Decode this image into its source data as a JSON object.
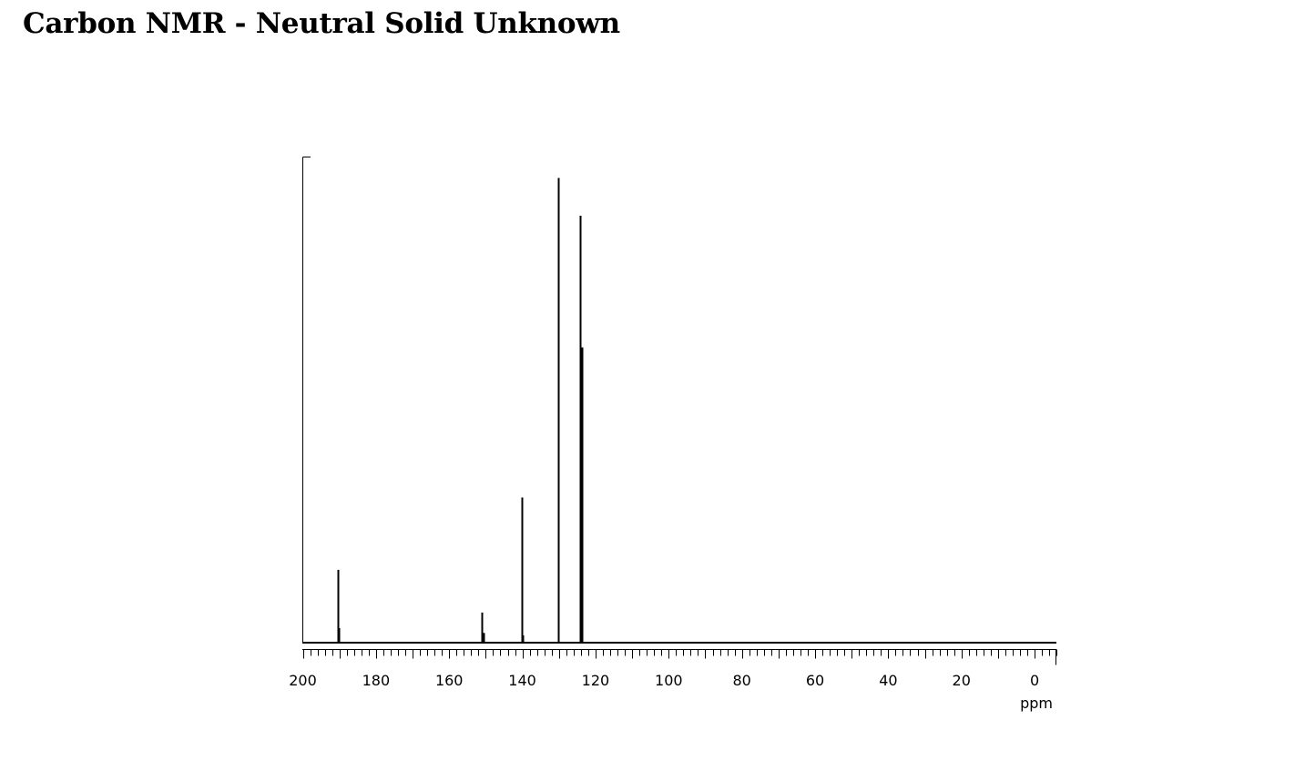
{
  "title": "Carbon NMR - Neutral Solid Unknown",
  "chart_data": {
    "type": "line",
    "title": "Carbon NMR - Neutral Solid Unknown",
    "xlabel": "ppm",
    "ylabel": "",
    "xlim": [
      200,
      -6
    ],
    "x_reversed": true,
    "ylim": [
      0,
      100
    ],
    "x_ticks": [
      200,
      180,
      160,
      140,
      120,
      100,
      80,
      60,
      40,
      20,
      0
    ],
    "x_tick_labels": [
      "200",
      "180",
      "160",
      "140",
      "120",
      "100",
      "80",
      "60",
      "40",
      "20",
      "0"
    ],
    "minor_tick_step_ppm": 2,
    "grid": false,
    "legend": "none",
    "color": "#000000",
    "peaks": [
      {
        "ppm": 190.5,
        "intensity": 15.0
      },
      {
        "ppm": 190.1,
        "intensity": 3.0
      },
      {
        "ppm": 151.2,
        "intensity": 6.2
      },
      {
        "ppm": 150.7,
        "intensity": 2.0
      },
      {
        "ppm": 140.2,
        "intensity": 29.9
      },
      {
        "ppm": 139.9,
        "intensity": 1.5
      },
      {
        "ppm": 130.2,
        "intensity": 95.7
      },
      {
        "ppm": 124.3,
        "intensity": 87.9
      },
      {
        "ppm": 123.8,
        "intensity": 60.8
      }
    ]
  }
}
